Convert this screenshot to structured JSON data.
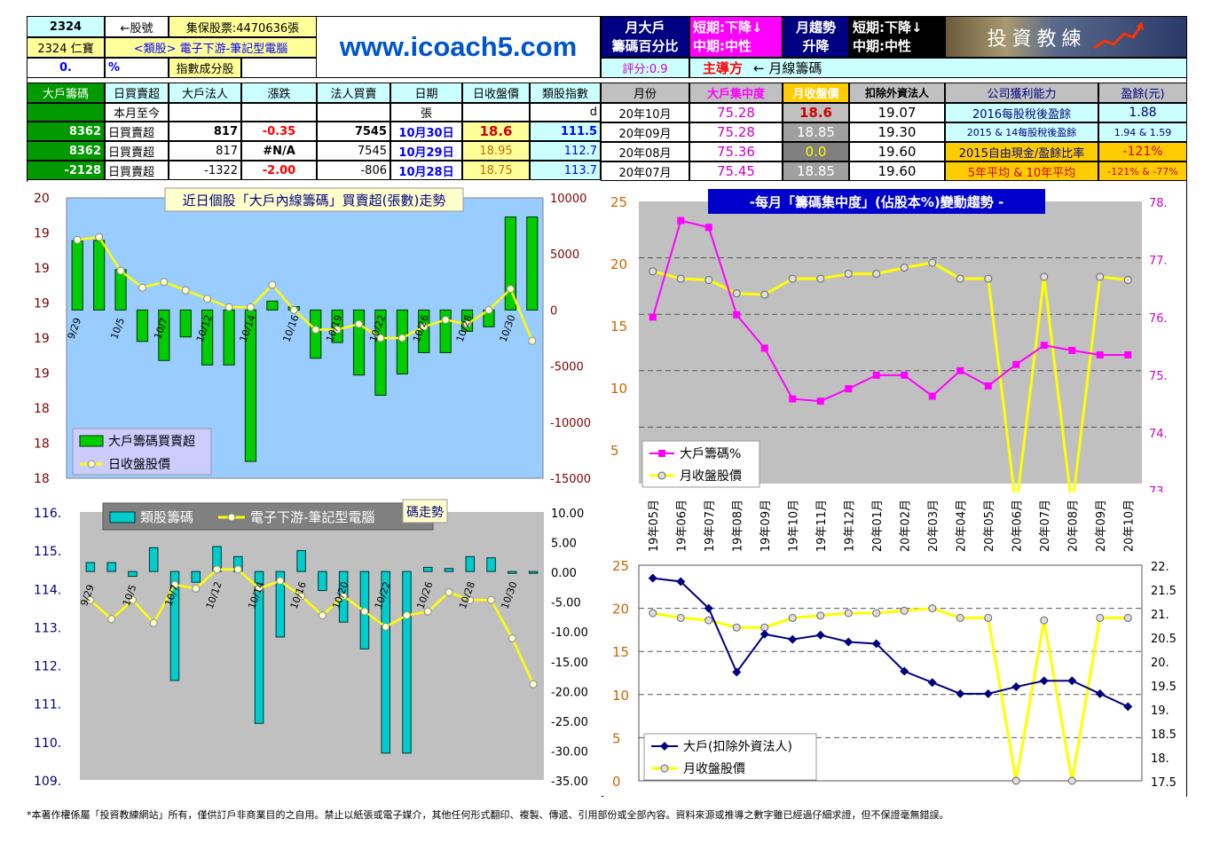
{
  "header": {
    "stock_code": "2324",
    "stock_code_label": "←股號",
    "shares_label": "集保股票:4470636張",
    "stock_name": "2324 仁寶",
    "sector_label": "<類股> 電子下游-筆記型電腦",
    "zero_value": "0.",
    "percent_sign": "%",
    "index_label": "指數成分股",
    "website": "www.icoach5.com",
    "box_bigholder_1": "月大戶",
    "box_bigholder_2": "籌碼百分比",
    "short_term_1": "短期:下降↓",
    "mid_term_1": "中期:中性",
    "monthly_trend_1": "月趨勢",
    "monthly_trend_2": "升降",
    "short_term_2": "短期:下降↓",
    "mid_term_2": "中期:中性",
    "logo_text": "投資教練",
    "score_label": "評分:0.9",
    "main_label": "主導方",
    "main_value": "← 月線籌碼"
  },
  "left_table": {
    "headers": [
      "大戶籌碼",
      "日買賣超",
      "大戶法人",
      "漲跌",
      "法人買賣",
      "日期",
      "日收盤價",
      "類股指數"
    ],
    "sub": {
      "c2": "本月至今",
      "c6": "張",
      "c8": "d"
    },
    "rows": [
      {
        "a": "8362",
        "b": "日買賣超",
        "c": "817",
        "d": "-0.35",
        "e": "7545",
        "f": "10月30日",
        "g": "18.6",
        "h": "111.5"
      },
      {
        "a": "8362",
        "b": "日買賣超",
        "c": "817",
        "d": "#N/A",
        "e": "7545",
        "f": "10月29日",
        "g": "18.95",
        "h": "112.7"
      },
      {
        "a": "-2128",
        "b": "日買賣超",
        "c": "-1322",
        "d": "-2.00",
        "e": "-806",
        "f": "10月28日",
        "g": "18.75",
        "h": "113.7"
      }
    ]
  },
  "right_table": {
    "headers": [
      "月份",
      "大戶集中度",
      "月收盤價",
      "扣除外資法人",
      "公司獲利能力",
      "盈餘(元)"
    ],
    "rows": [
      {
        "m": "20年10月",
        "c": "75.28",
        "p": "18.6",
        "x": "19.07",
        "k": "2016每股稅後盈餘",
        "v": "1.88"
      },
      {
        "m": "20年09月",
        "c": "75.28",
        "p": "18.85",
        "x": "19.30",
        "k": "2015 & 14每股稅後盈餘",
        "v": "1.94 & 1.59"
      },
      {
        "m": "20年08月",
        "c": "75.36",
        "p": "0.0",
        "x": "19.60",
        "k": "2015自由現金/盈餘比率",
        "v": "-121%"
      },
      {
        "m": "20年07月",
        "c": "75.45",
        "p": "18.85",
        "x": "19.60",
        "k": "5年平均 & 10年平均",
        "v": "-121% & -77%"
      }
    ]
  },
  "footer": "*本著作權係屬「投資教練網站」所有，僅供訂戶非商業目的之自用。禁止以紙張或電子媒介，其他任何形式翻印、複製、傳遞、引用部份或全部內容。資料來源或推導之數字雖已經過仔細求證，但不保證毫無錯誤。",
  "chart_data": [
    {
      "id": "daily-bigholder",
      "type": "bar",
      "title": "近日個股「大戶內線籌碼」買賣超(張數)走勢",
      "categories": [
        "9/29",
        "",
        "10/5",
        "",
        "10/7",
        "",
        "10/12",
        "",
        "10/14",
        "",
        "10/16",
        "",
        "10/19",
        "",
        "10/22",
        "",
        "10/26",
        "",
        "10/28",
        "",
        "10/30",
        ""
      ],
      "series": [
        {
          "name": "大戶籌碼買賣超",
          "axis": "right",
          "values": [
            6200,
            6200,
            3600,
            -2800,
            -4500,
            -2400,
            -4900,
            -4900,
            -13500,
            800,
            300,
            -4300,
            -2900,
            -5800,
            -7600,
            -5700,
            -3800,
            -3800,
            -1900,
            -1500,
            8300,
            8300
          ]
        },
        {
          "name": "日收盤股價",
          "axis": "left",
          "values": [
            19.7,
            19.72,
            19.48,
            19.36,
            19.4,
            19.34,
            19.28,
            19.22,
            19.22,
            19.38,
            19.2,
            19.06,
            19.06,
            19.1,
            19.0,
            19.0,
            19.08,
            19.13,
            19.1,
            19.2,
            19.35,
            18.98
          ]
        }
      ],
      "left_ticks": [
        "20",
        "19",
        "19",
        "19",
        "19",
        "19",
        "18",
        "18",
        "18"
      ],
      "right_ticks": [
        "10000",
        "5000",
        "0",
        "-5000",
        "-10000",
        "-15000"
      ],
      "left_range": [
        18.0,
        20.0
      ],
      "right_range": [
        -15000,
        10000
      ]
    },
    {
      "id": "monthly-concentration",
      "type": "line",
      "title": "-每月「籌碼集中度」(佔股本%)變動趨勢 -",
      "x": [
        "19年05月",
        "19年06月",
        "19年07月",
        "19年08月",
        "19年09月",
        "19年10月",
        "19年11月",
        "19年12月",
        "20年01月",
        "20年02月",
        "20年03月",
        "20年04月",
        "20年05月",
        "20年06月",
        "20年07月",
        "20年08月",
        "20年09月",
        "20年10月"
      ],
      "series": [
        {
          "name": "大戶籌碼%",
          "axis": "right",
          "values": [
            75.95,
            77.66,
            77.54,
            75.99,
            75.4,
            74.5,
            74.46,
            74.68,
            74.92,
            74.92,
            74.55,
            75.0,
            74.73,
            75.11,
            75.45,
            75.36,
            75.28,
            75.28
          ]
        },
        {
          "name": "月收盤股價",
          "axis": "left",
          "values": [
            19.3,
            18.7,
            18.6,
            17.5,
            17.4,
            18.7,
            18.7,
            19.1,
            19.1,
            19.6,
            20.0,
            18.7,
            18.7,
            0,
            18.85,
            0,
            18.85,
            18.6
          ]
        }
      ],
      "left_ticks": [
        "25",
        "20",
        "15",
        "10",
        "5"
      ],
      "right_ticks": [
        "78.",
        "77.",
        "76.",
        "75.",
        "74.",
        "73."
      ],
      "left_range": [
        2,
        25
      ],
      "right_range": [
        73,
        78
      ]
    },
    {
      "id": "sector-chips",
      "type": "bar",
      "title": "電子下游-筆記型電腦類股籌碼走勢",
      "categories": [
        "9/29",
        "",
        "10/5",
        "",
        "10/7",
        "",
        "10/12",
        "",
        "10/14",
        "",
        "10/16",
        "",
        "10/20",
        "",
        "10/22",
        "",
        "10/26",
        "",
        "10/28",
        "",
        "10/30",
        ""
      ],
      "series": [
        {
          "name": "類股籌碼",
          "axis": "right",
          "values": [
            1.5,
            1.5,
            -0.8,
            4.0,
            -18.3,
            -1.8,
            4.2,
            2.5,
            -25.5,
            -11.0,
            3.5,
            -3.2,
            -8.5,
            -13.0,
            -30.5,
            -30.5,
            0.7,
            0.5,
            2.5,
            2.3,
            -0.3,
            -0.3
          ]
        },
        {
          "name": "電子下游-筆記型電腦",
          "axis": "left",
          "values": [
            113.7,
            113.2,
            113.7,
            113.1,
            114.1,
            114.0,
            114.5,
            114.5,
            114.0,
            114.2,
            113.8,
            113.3,
            113.8,
            113.4,
            113.0,
            113.3,
            113.4,
            113.9,
            113.7,
            113.7,
            112.7,
            111.5
          ]
        }
      ],
      "left_ticks": [
        "116.",
        "115.",
        "114.",
        "113.",
        "112.",
        "111.",
        "110.",
        "109."
      ],
      "right_ticks": [
        "10.00",
        "5.00",
        "0.00",
        "-5.00",
        "-10.00",
        "-15.00",
        "-20.00",
        "-25.00",
        "-30.00",
        "-35.00"
      ],
      "left_range": [
        109,
        116
      ],
      "right_range": [
        -35,
        10
      ]
    },
    {
      "id": "monthly-excl-foreign",
      "type": "line",
      "x": [
        "19年05月",
        "19年06月",
        "19年07月",
        "19年08月",
        "19年09月",
        "19年10月",
        "19年11月",
        "19年12月",
        "20年01月",
        "20年02月",
        "20年03月",
        "20年04月",
        "20年05月",
        "20年06月",
        "20年07月",
        "20年08月",
        "20年09月",
        "20年10月"
      ],
      "series": [
        {
          "name": "大戶(扣除外資法人)",
          "axis": "left",
          "values": [
            23.5,
            23.1,
            20.0,
            12.6,
            17.0,
            16.4,
            16.9,
            16.1,
            15.9,
            12.7,
            11.4,
            10.1,
            10.1,
            10.9,
            11.6,
            11.6,
            10.1,
            8.6
          ]
        },
        {
          "name": "月收盤股價",
          "axis": "right",
          "values": [
            21.0,
            20.9,
            20.85,
            20.7,
            20.7,
            20.9,
            20.95,
            21.0,
            21.0,
            21.05,
            21.1,
            20.9,
            20.9,
            17.5,
            20.85,
            17.5,
            20.9,
            20.9
          ]
        }
      ],
      "left_ticks": [
        "25",
        "20",
        "15",
        "10",
        "5",
        "0"
      ],
      "right_ticks": [
        "22.",
        "21.5",
        "21.",
        "20.5",
        "20.",
        "19.5",
        "19.",
        "18.5",
        "18.",
        "17.5"
      ],
      "left_range": [
        0,
        25
      ],
      "right_range": [
        17.5,
        22
      ]
    }
  ],
  "colors": {
    "green_bar": "#00cc00",
    "cyan_bar": "#00cccc",
    "magenta": "#ff00ff",
    "yellow": "#ffff00",
    "navy": "#000080",
    "plot_blue": "#99ccff",
    "plot_gray": "#c0c0c0"
  }
}
